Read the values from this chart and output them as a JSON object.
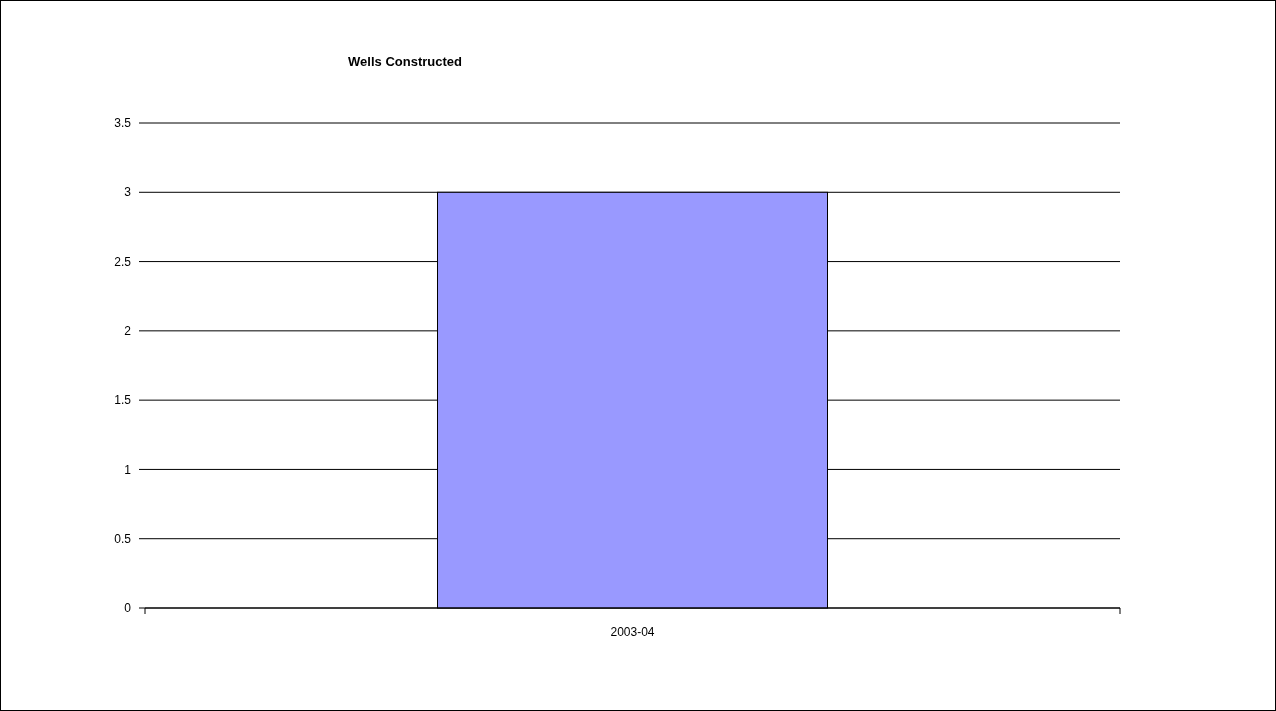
{
  "chart_data": {
    "type": "bar",
    "title": "Wells Constructed",
    "categories": [
      "2003-04"
    ],
    "values": [
      3
    ],
    "color": "#9999ff",
    "ylim": [
      0,
      3.5
    ],
    "yticks": [
      0,
      0.5,
      1,
      1.5,
      2,
      2.5,
      3,
      3.5
    ],
    "grid": "y"
  }
}
